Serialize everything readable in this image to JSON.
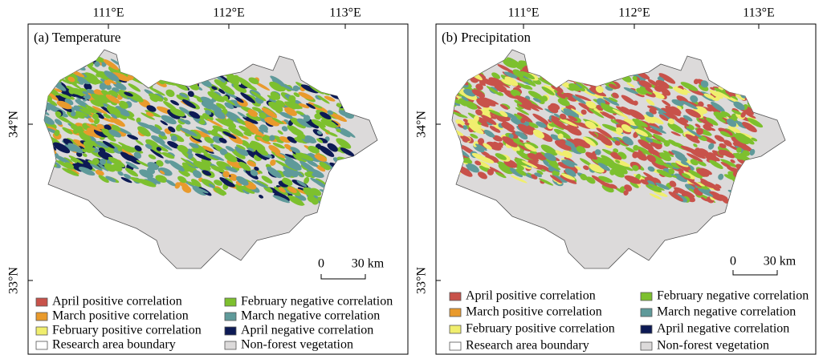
{
  "panels": [
    {
      "title": "(a) Temperature",
      "x_labels": [
        "111°E",
        "112°E",
        "113°E"
      ],
      "y_labels": [
        "34°N",
        "33°N"
      ],
      "scale": {
        "zero": "0",
        "length": "30 km"
      },
      "legend": [
        {
          "label": "April positive correlation",
          "color": "#c8524a"
        },
        {
          "label": "March positive correlation",
          "color": "#e99a2c"
        },
        {
          "label": "February positive correlation",
          "color": "#f0ee6e"
        },
        {
          "label": "Research area boundary",
          "color": "#ffffff"
        },
        {
          "label": "February negative correlation",
          "color": "#7dc02e"
        },
        {
          "label": "March negative correlation",
          "color": "#5f9a9a"
        },
        {
          "label": "April negative correlation",
          "color": "#0d1a55"
        },
        {
          "label": "Non-forest vegetation",
          "color": "#dcdada"
        }
      ]
    },
    {
      "title": "(b) Precipitation",
      "x_labels": [
        "111°E",
        "112°E",
        "113°E"
      ],
      "y_labels": [
        "34°N",
        "33°N"
      ],
      "scale": {
        "zero": "0",
        "length": "30 km"
      },
      "legend": [
        {
          "label": "April positive correlation",
          "color": "#c8524a"
        },
        {
          "label": "March positive correlation",
          "color": "#e99a2c"
        },
        {
          "label": "February positive correlation",
          "color": "#f0ee6e"
        },
        {
          "label": "Research area boundary",
          "color": "#ffffff"
        },
        {
          "label": "February negative correlation",
          "color": "#7dc02e"
        },
        {
          "label": "March negative correlation",
          "color": "#5f9a9a"
        },
        {
          "label": "April negative correlation",
          "color": "#0d1a55"
        },
        {
          "label": "Non-forest vegetation",
          "color": "#dcdada"
        }
      ]
    }
  ]
}
